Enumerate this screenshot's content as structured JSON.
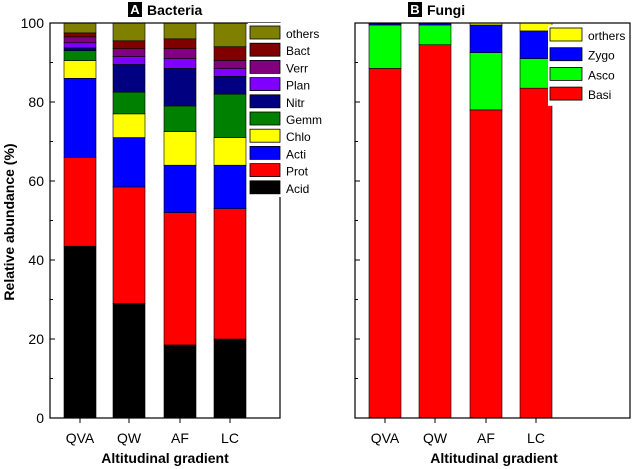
{
  "y_axis_label": "Relative abundance (%)",
  "chart_data": [
    {
      "type": "bar",
      "stacked": true,
      "panel_letter": "A",
      "title": "Bacteria",
      "xlabel": "Altitudinal gradient",
      "ylabel": "Relative abundance (%)",
      "ylim": [
        0,
        100
      ],
      "yticks": [
        0,
        20,
        40,
        60,
        80,
        100
      ],
      "categories": [
        "QVA",
        "QW",
        "AF",
        "LC"
      ],
      "legend_position": "right, inside plot",
      "series": [
        {
          "name": "Acid",
          "color": "#000000",
          "values": [
            43.5,
            29,
            18.5,
            20
          ]
        },
        {
          "name": "Prot",
          "color": "#ff0000",
          "values": [
            22.5,
            29.5,
            33.5,
            33
          ]
        },
        {
          "name": "Acti",
          "color": "#0000ff",
          "values": [
            20,
            12.5,
            12,
            11
          ]
        },
        {
          "name": "Chlo",
          "color": "#ffff00",
          "values": [
            4.5,
            6,
            8.5,
            7
          ]
        },
        {
          "name": "Gemm",
          "color": "#008000",
          "values": [
            2.5,
            5.5,
            6.5,
            11
          ]
        },
        {
          "name": "Nitr",
          "color": "#000080",
          "values": [
            0.7,
            7,
            9.5,
            4.5
          ]
        },
        {
          "name": "Plan",
          "color": "#8000ff",
          "values": [
            1.3,
            2,
            2.5,
            2
          ]
        },
        {
          "name": "Verr",
          "color": "#800080",
          "values": [
            1.5,
            2,
            2.5,
            2
          ]
        },
        {
          "name": "Bact",
          "color": "#800000",
          "values": [
            1,
            2,
            2.5,
            3.5
          ]
        },
        {
          "name": "others",
          "color": "#808000",
          "values": [
            2.5,
            4.5,
            4,
            6
          ]
        }
      ]
    },
    {
      "type": "bar",
      "stacked": true,
      "panel_letter": "B",
      "title": "Fungi",
      "xlabel": "Altitudinal gradient",
      "ylabel": "",
      "ylim": [
        0,
        100
      ],
      "yticks": [
        0,
        20,
        40,
        60,
        80,
        100
      ],
      "categories": [
        "QVA",
        "QW",
        "AF",
        "LC"
      ],
      "legend_position": "top-right, inside plot",
      "series": [
        {
          "name": "Basi",
          "color": "#ff0000",
          "values": [
            88.5,
            94.5,
            78,
            83.5
          ]
        },
        {
          "name": "Asco",
          "color": "#00ff00",
          "values": [
            11,
            5,
            14.5,
            7.5
          ]
        },
        {
          "name": "Zygo",
          "color": "#0000ff",
          "values": [
            0.3,
            0.4,
            7,
            7
          ]
        },
        {
          "name": "orthers",
          "color": "#ffff00",
          "values": [
            0.2,
            0.1,
            0.5,
            2
          ]
        }
      ]
    }
  ]
}
